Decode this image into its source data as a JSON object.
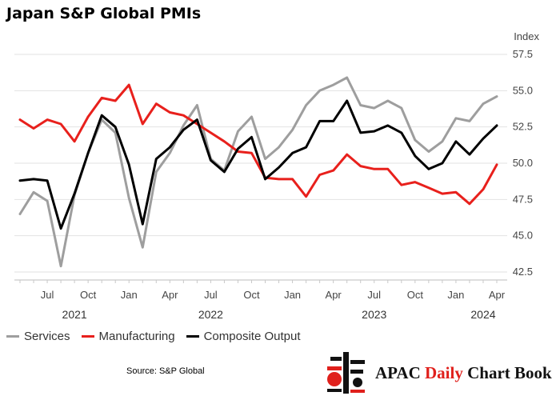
{
  "title": "Japan S&P Global PMIs",
  "source": "Source: S&P Global",
  "brand": {
    "part1": "APAC ",
    "part2": "Daily",
    "part3": " Chart Book"
  },
  "chart_data": {
    "type": "line",
    "title": "Japan S&P Global PMIs",
    "ylabel": "Index",
    "ylim": [
      42.5,
      57.5
    ],
    "yticks": [
      "57.5",
      "55.0",
      "52.5",
      "50.0",
      "47.5",
      "45.0",
      "42.5"
    ],
    "ytick_values": [
      57.5,
      55.0,
      52.5,
      50.0,
      47.5,
      45.0,
      42.5
    ],
    "x": [
      "2021-05",
      "2021-06",
      "2021-07",
      "2021-08",
      "2021-09",
      "2021-10",
      "2021-11",
      "2021-12",
      "2022-01",
      "2022-02",
      "2022-03",
      "2022-04",
      "2022-05",
      "2022-06",
      "2022-07",
      "2022-08",
      "2022-09",
      "2022-10",
      "2022-11",
      "2022-12",
      "2023-01",
      "2023-02",
      "2023-03",
      "2023-04",
      "2023-05",
      "2023-06",
      "2023-07",
      "2023-08",
      "2023-09",
      "2023-10",
      "2023-11",
      "2023-12",
      "2024-01",
      "2024-02",
      "2024-03",
      "2024-04"
    ],
    "xtick_labels": [
      {
        "label": "Jul",
        "x": "2021-07"
      },
      {
        "label": "Oct",
        "x": "2021-10"
      },
      {
        "label": "Jan",
        "x": "2022-01"
      },
      {
        "label": "Apr",
        "x": "2022-04"
      },
      {
        "label": "Jul",
        "x": "2022-07"
      },
      {
        "label": "Oct",
        "x": "2022-10"
      },
      {
        "label": "Jan",
        "x": "2023-01"
      },
      {
        "label": "Apr",
        "x": "2023-04"
      },
      {
        "label": "Jul",
        "x": "2023-07"
      },
      {
        "label": "Oct",
        "x": "2023-10"
      },
      {
        "label": "Jan",
        "x": "2024-01"
      },
      {
        "label": "Apr",
        "x": "2024-04"
      }
    ],
    "year_labels": [
      {
        "label": "2021",
        "x": "2021-09"
      },
      {
        "label": "2022",
        "x": "2022-07"
      },
      {
        "label": "2023",
        "x": "2023-07"
      },
      {
        "label": "2024",
        "x": "2024-03"
      }
    ],
    "grid": true,
    "legend": "bottom",
    "series": [
      {
        "name": "Services",
        "color": "#9e9e9e",
        "values": [
          46.5,
          48.0,
          47.4,
          42.9,
          47.8,
          50.7,
          53.0,
          52.1,
          47.6,
          44.2,
          49.4,
          50.7,
          52.6,
          54.0,
          50.3,
          49.5,
          52.2,
          53.2,
          50.3,
          51.1,
          52.3,
          54.0,
          55.0,
          55.4,
          55.9,
          54.0,
          53.8,
          54.3,
          53.8,
          51.6,
          50.8,
          51.5,
          53.1,
          52.9,
          54.1,
          54.6
        ]
      },
      {
        "name": "Manufacturing",
        "color": "#e8201c",
        "values": [
          53.0,
          52.4,
          53.0,
          52.7,
          51.5,
          53.2,
          54.5,
          54.3,
          55.4,
          52.7,
          54.1,
          53.5,
          53.3,
          52.7,
          52.1,
          51.5,
          50.8,
          50.7,
          49.0,
          48.9,
          48.9,
          47.7,
          49.2,
          49.5,
          50.6,
          49.8,
          49.6,
          49.6,
          48.5,
          48.7,
          48.3,
          47.9,
          48.0,
          47.2,
          48.2,
          49.9
        ]
      },
      {
        "name": "Composite Output",
        "color": "#000000",
        "values": [
          48.8,
          48.9,
          48.8,
          45.5,
          47.9,
          50.7,
          53.3,
          52.5,
          49.9,
          45.8,
          50.3,
          51.1,
          52.3,
          53.0,
          50.2,
          49.4,
          51.0,
          51.8,
          48.9,
          49.7,
          50.7,
          51.1,
          52.9,
          52.9,
          54.3,
          52.1,
          52.2,
          52.6,
          52.1,
          50.5,
          49.6,
          50.0,
          51.5,
          50.6,
          51.7,
          52.6
        ]
      }
    ]
  }
}
